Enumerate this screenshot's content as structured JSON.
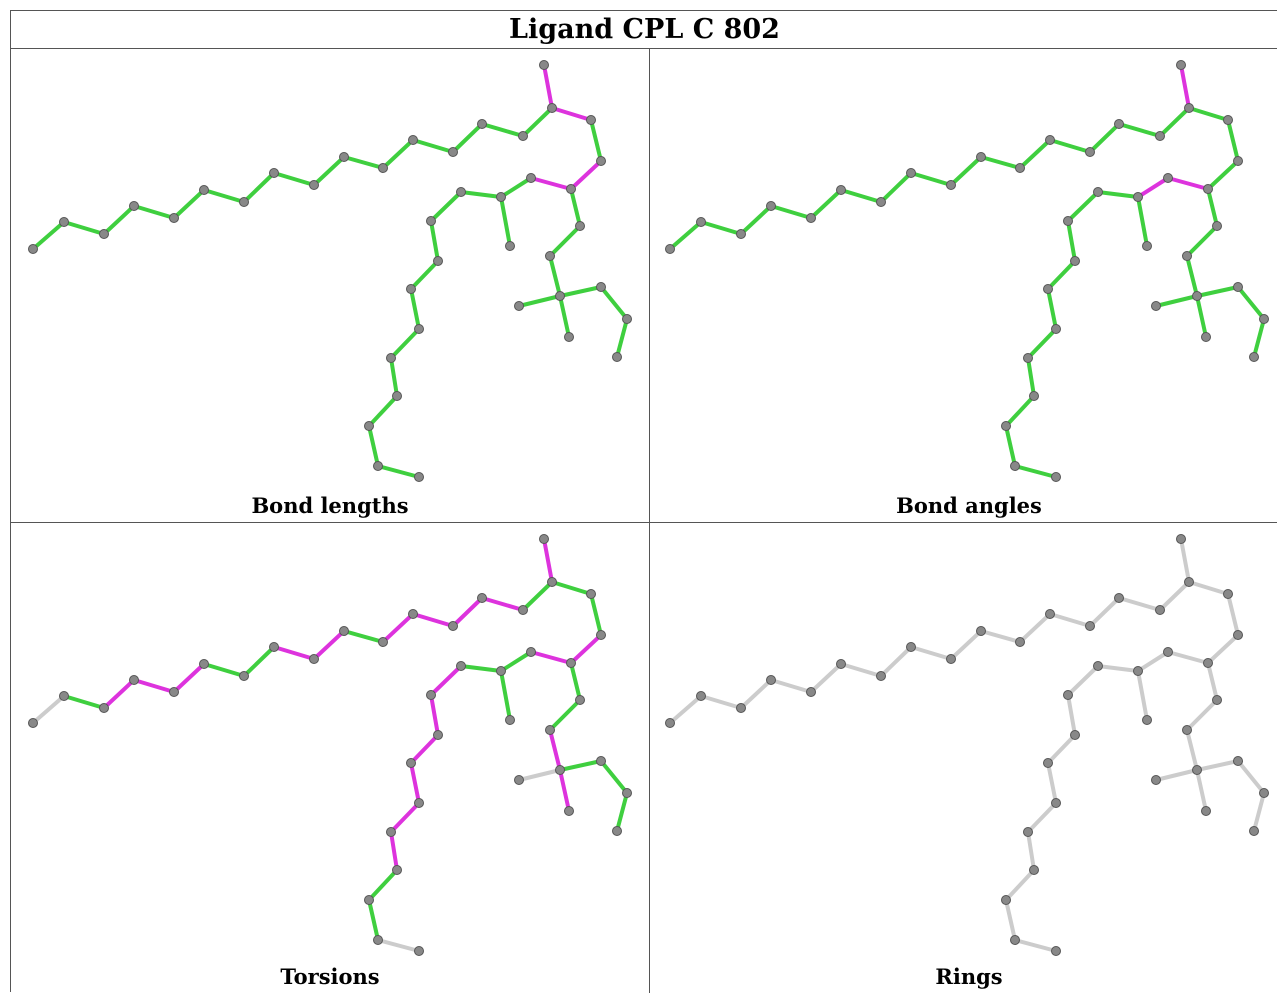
{
  "title": "Ligand CPL C 802",
  "panels": [
    {
      "caption": "Bond lengths"
    },
    {
      "caption": "Bond angles"
    },
    {
      "caption": "Torsions"
    },
    {
      "caption": "Rings"
    }
  ],
  "colors": {
    "ok": "#3fcf3f",
    "outlier": "#dd33dd",
    "neutral": "#cccccc",
    "atom": "#888888",
    "atom_shade": "#555555"
  }
}
